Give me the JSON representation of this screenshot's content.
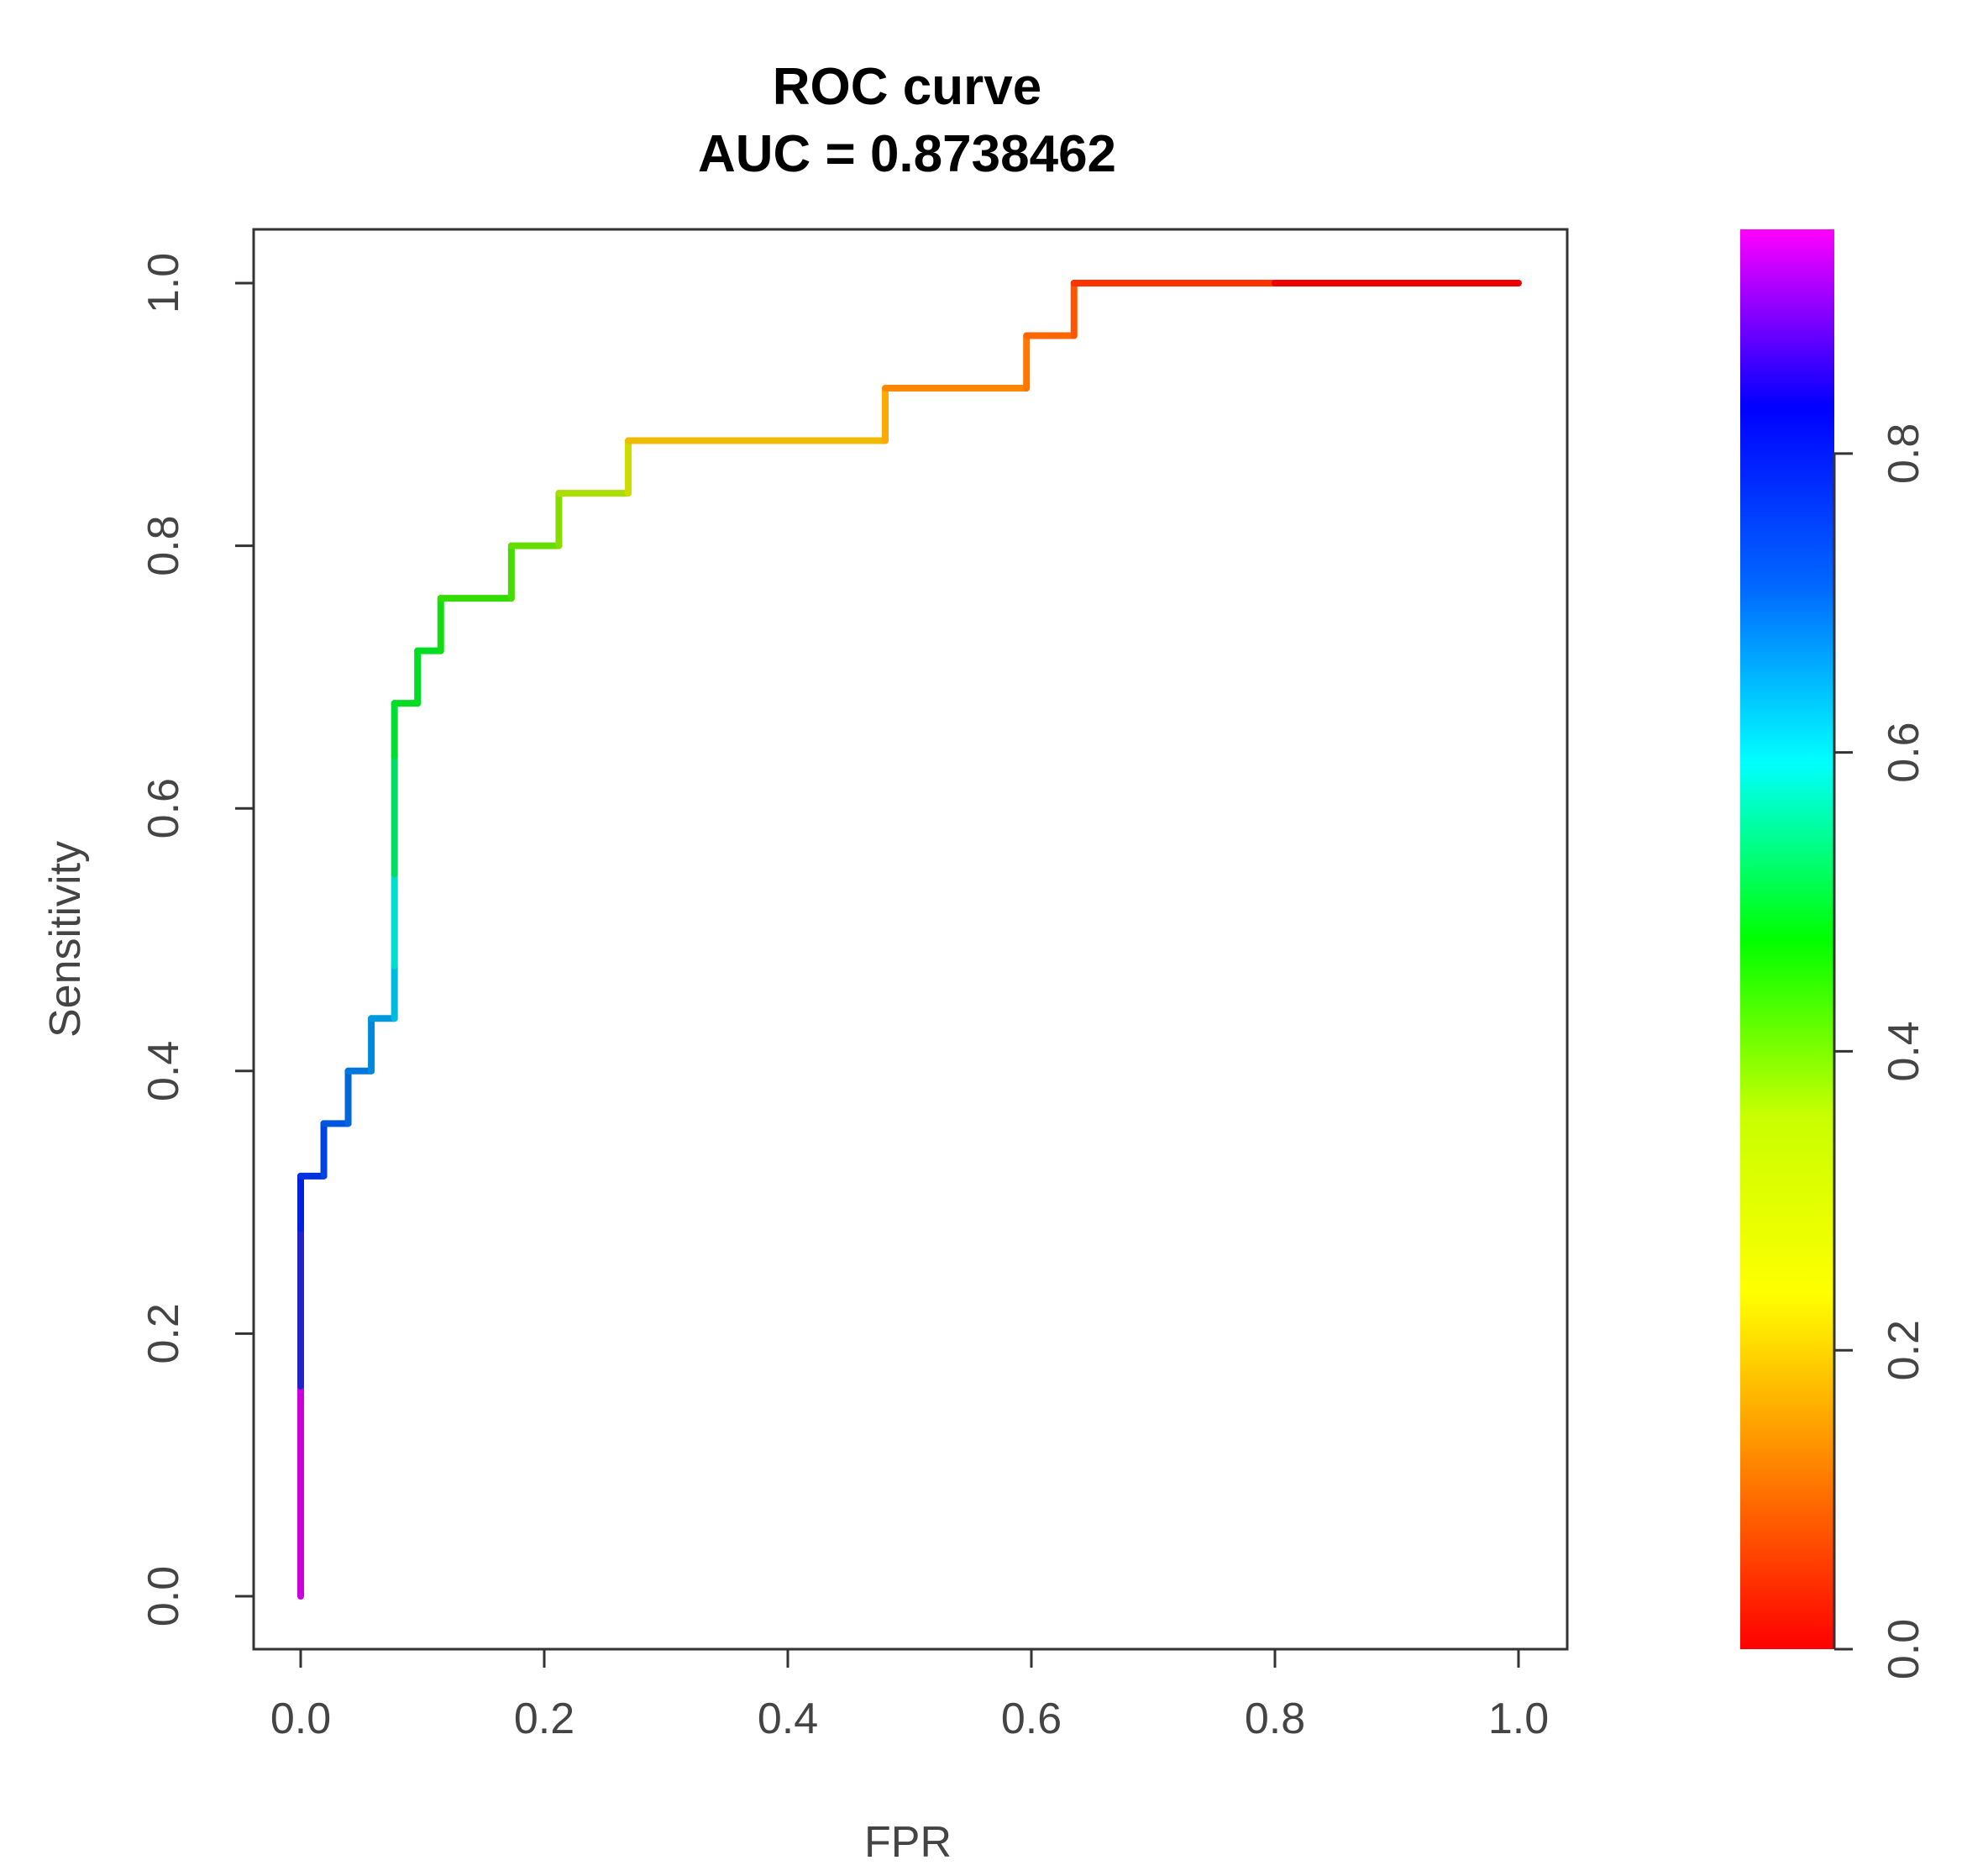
{
  "chart_data": {
    "type": "line",
    "title": "ROC curve",
    "subtitle": "AUC = 0.8738462",
    "xlabel": "FPR",
    "ylabel": "Sensitivity",
    "xlim": [
      0,
      1
    ],
    "ylim": [
      0,
      1
    ],
    "x_ticks": [
      "0.0",
      "0.2",
      "0.4",
      "0.6",
      "0.8",
      "1.0"
    ],
    "y_ticks": [
      "0.0",
      "0.2",
      "0.4",
      "0.6",
      "0.8",
      "1.0"
    ],
    "grid": false,
    "colorbar": {
      "range": [
        0,
        0.95
      ],
      "ticks": [
        "0.0",
        "0.2",
        "0.4",
        "0.6",
        "0.8"
      ],
      "gradient": [
        "#ff0000",
        "#ff8000",
        "#ffff00",
        "#c8ff00",
        "#00ff00",
        "#00ffff",
        "#0066ff",
        "#0000ff",
        "#ff00ff"
      ]
    },
    "series": [
      {
        "name": "ROC",
        "points": [
          {
            "x": 0.0,
            "y": 0.0,
            "c": "#cc00dd"
          },
          {
            "x": 0.0,
            "y": 0.16,
            "c": "#cc00dd"
          },
          {
            "x": 0.0,
            "y": 0.28,
            "c": "#2222cc"
          },
          {
            "x": 0.0,
            "y": 0.32,
            "c": "#0022dd"
          },
          {
            "x": 0.019,
            "y": 0.32,
            "c": "#0033dd"
          },
          {
            "x": 0.019,
            "y": 0.36,
            "c": "#0044dd"
          },
          {
            "x": 0.039,
            "y": 0.36,
            "c": "#0055dd"
          },
          {
            "x": 0.039,
            "y": 0.4,
            "c": "#0066dd"
          },
          {
            "x": 0.058,
            "y": 0.4,
            "c": "#0077dd"
          },
          {
            "x": 0.058,
            "y": 0.44,
            "c": "#0088dd"
          },
          {
            "x": 0.077,
            "y": 0.44,
            "c": "#0099dd"
          },
          {
            "x": 0.077,
            "y": 0.48,
            "c": "#00bbdd"
          },
          {
            "x": 0.077,
            "y": 0.55,
            "c": "#00ddcc"
          },
          {
            "x": 0.077,
            "y": 0.64,
            "c": "#00dd66"
          },
          {
            "x": 0.077,
            "y": 0.68,
            "c": "#00dd33"
          },
          {
            "x": 0.096,
            "y": 0.68,
            "c": "#00dd22"
          },
          {
            "x": 0.096,
            "y": 0.72,
            "c": "#00dd22"
          },
          {
            "x": 0.115,
            "y": 0.72,
            "c": "#00dd22"
          },
          {
            "x": 0.115,
            "y": 0.76,
            "c": "#11dd11"
          },
          {
            "x": 0.173,
            "y": 0.76,
            "c": "#33dd00"
          },
          {
            "x": 0.173,
            "y": 0.8,
            "c": "#44dd00"
          },
          {
            "x": 0.212,
            "y": 0.8,
            "c": "#66dd00"
          },
          {
            "x": 0.212,
            "y": 0.84,
            "c": "#88dd00"
          },
          {
            "x": 0.269,
            "y": 0.84,
            "c": "#aadd00"
          },
          {
            "x": 0.269,
            "y": 0.88,
            "c": "#ccdd00"
          },
          {
            "x": 0.48,
            "y": 0.88,
            "c": "#eebb00"
          },
          {
            "x": 0.48,
            "y": 0.92,
            "c": "#ffaa00"
          },
          {
            "x": 0.596,
            "y": 0.92,
            "c": "#ff8800"
          },
          {
            "x": 0.596,
            "y": 0.96,
            "c": "#ff7700"
          },
          {
            "x": 0.635,
            "y": 0.96,
            "c": "#ff6600"
          },
          {
            "x": 0.635,
            "y": 1.0,
            "c": "#ff5500"
          },
          {
            "x": 0.8,
            "y": 1.0,
            "c": "#ff3300"
          },
          {
            "x": 1.0,
            "y": 1.0,
            "c": "#ee0000"
          }
        ]
      }
    ]
  }
}
